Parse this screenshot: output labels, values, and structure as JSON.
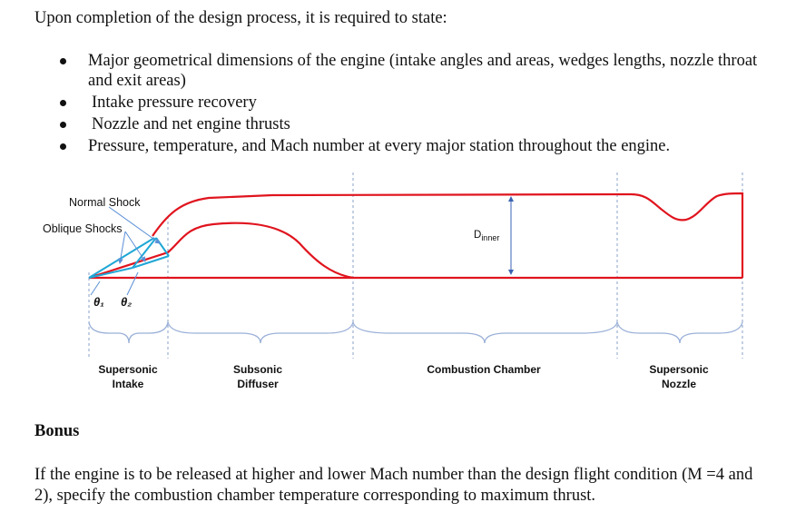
{
  "intro": "Upon completion of the design process, it is required to state:",
  "bullets": [
    "Major geometrical dimensions of the engine (intake angles and areas, wedges lengths, nozzle throat and exit areas)",
    "Intake pressure recovery",
    "Nozzle and net engine thrusts",
    "Pressure, temperature, and Mach number at every major station throughout the engine."
  ],
  "diagram": {
    "normal_shock": "Normal Shock",
    "oblique_shocks": "Oblique Shocks",
    "theta1": "θ₁",
    "theta2": "θ₂",
    "d_inner_main": "D",
    "d_inner_sub": "inner",
    "sections": [
      {
        "line1": "Supersonic",
        "line2": "Intake"
      },
      {
        "line1": "Subsonic",
        "line2": "Diffuser"
      },
      {
        "line1": "Combustion Chamber",
        "line2": ""
      },
      {
        "line1": "Supersonic",
        "line2": "Nozzle"
      }
    ],
    "colors": {
      "engine": "#e0141e",
      "shock": "#1fa7d6",
      "guide": "#5b8fd6",
      "brace": "#9ab0d8"
    }
  },
  "bonus": {
    "heading": "Bonus",
    "text": "If the engine is to be released at higher and lower Mach number than the design flight condition (M =4 and 2), specify the combustion chamber temperature corresponding to maximum thrust."
  }
}
